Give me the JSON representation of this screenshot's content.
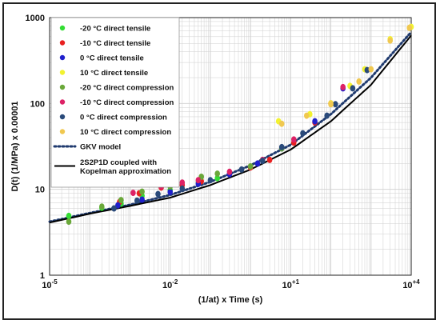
{
  "chart_data": {
    "type": "scatter",
    "xlabel": "(1/at) x Time (s)",
    "ylabel": "D(t) (1/MPa)    x    0.00001",
    "x_scale": "log",
    "y_scale": "log",
    "xlim": [
      1e-05,
      10000
    ],
    "ylim": [
      1,
      1000
    ],
    "x_ticks": [
      {
        "value": 1e-05,
        "base": "10",
        "exp": "-5"
      },
      {
        "value": 0.01,
        "base": "10",
        "exp": "-2"
      },
      {
        "value": 10,
        "base": "10",
        "exp": "+1"
      },
      {
        "value": 10000,
        "base": "10",
        "exp": "+4"
      }
    ],
    "y_ticks": [
      {
        "value": 1,
        "label": "1"
      },
      {
        "value": 10,
        "label": "10"
      },
      {
        "value": 100,
        "label": "100"
      },
      {
        "value": 1000,
        "label": "1000"
      }
    ],
    "grid": true,
    "legend_position": "top-left",
    "series": [
      {
        "name": "-20 °C direct tensile",
        "kind": "points",
        "color": "#33dd33",
        "points": [
          [
            3e-05,
            4.9
          ],
          [
            0.0002,
            6.1
          ],
          [
            0.0006,
            6.8
          ],
          [
            0.002,
            8.4
          ],
          [
            0.01,
            9.8
          ],
          [
            0.05,
            12.0
          ],
          [
            0.15,
            13.5
          ]
        ]
      },
      {
        "name": "-10 °C direct tensile",
        "kind": "points",
        "color": "#e82020",
        "points": [
          [
            0.00055,
            7.1
          ],
          [
            0.0017,
            9.0
          ],
          [
            0.006,
            10.5
          ],
          [
            0.02,
            11.2
          ],
          [
            0.06,
            12.4
          ],
          [
            1.0,
            18.0
          ],
          [
            3.0,
            22.0
          ],
          [
            12,
            35.0
          ],
          [
            40,
            60.0
          ],
          [
            100,
            100.0
          ]
        ]
      },
      {
        "name": "0 °C direct tensile",
        "kind": "points",
        "color": "#2020cc",
        "points": [
          [
            0.0005,
            6.5
          ],
          [
            0.002,
            7.6
          ],
          [
            0.01,
            9.3
          ],
          [
            0.05,
            11.6
          ],
          [
            0.3,
            15.0
          ],
          [
            1.5,
            20.0
          ],
          [
            6,
            30.0
          ],
          [
            40,
            62.0
          ],
          [
            200,
            150.0
          ]
        ]
      },
      {
        "name": "10 °C direct tensile",
        "kind": "points",
        "color": "#f2f230",
        "points": [
          [
            5,
            62.0
          ],
          [
            30,
            75.0
          ],
          [
            100,
            100.0
          ],
          [
            300,
            160.0
          ],
          [
            700,
            250.0
          ],
          [
            3000,
            560.0
          ],
          [
            10000,
            780.0
          ]
        ]
      },
      {
        "name": "-20 °C direct compression",
        "kind": "points",
        "color": "#6aa83a",
        "points": [
          [
            3e-05,
            4.2
          ],
          [
            0.0002,
            6.3
          ],
          [
            0.0006,
            7.5
          ],
          [
            0.002,
            9.4
          ],
          [
            0.01,
            10.8
          ],
          [
            0.06,
            14.0
          ],
          [
            0.15,
            15.2
          ],
          [
            1.0,
            18.5
          ],
          [
            6,
            30.0
          ]
        ]
      },
      {
        "name": "-10 °C direct compression",
        "kind": "points",
        "color": "#dd2266",
        "points": [
          [
            0.0012,
            9.1
          ],
          [
            0.006,
            10.8
          ],
          [
            0.02,
            12.0
          ],
          [
            0.05,
            12.8
          ],
          [
            0.3,
            16.0
          ],
          [
            2,
            22.0
          ],
          [
            12,
            38.0
          ],
          [
            200,
            155.0
          ]
        ]
      },
      {
        "name": "0 °C direct compression",
        "kind": "points",
        "color": "#2a4a7a",
        "points": [
          [
            0.0004,
            6.0
          ],
          [
            0.0015,
            7.4
          ],
          [
            0.005,
            8.8
          ],
          [
            0.02,
            10.2
          ],
          [
            0.1,
            12.8
          ],
          [
            0.6,
            17.0
          ],
          [
            2,
            21.5
          ],
          [
            6,
            31.0
          ],
          [
            20,
            45.0
          ],
          [
            80,
            72.0
          ],
          [
            130,
            98.0
          ],
          [
            350,
            150.0
          ],
          [
            800,
            245.0
          ]
        ]
      },
      {
        "name": "10 °C direct compression",
        "kind": "points",
        "color": "#f0c850",
        "points": [
          [
            6,
            58.0
          ],
          [
            25,
            72.0
          ],
          [
            100,
            98.0
          ],
          [
            500,
            180.0
          ],
          [
            1000,
            250.0
          ],
          [
            3000,
            540.0
          ],
          [
            9000,
            760.0
          ]
        ]
      },
      {
        "name": "GKV model",
        "kind": "line",
        "style": "dotted",
        "color": "#1f3a6e",
        "points": [
          [
            1e-05,
            4.2
          ],
          [
            0.0001,
            5.3
          ],
          [
            0.001,
            6.6
          ],
          [
            0.01,
            8.6
          ],
          [
            0.1,
            12.2
          ],
          [
            1,
            19.0
          ],
          [
            10,
            33.0
          ],
          [
            100,
            75.0
          ],
          [
            1000,
            200.0
          ],
          [
            10000,
            680.0
          ]
        ]
      },
      {
        "name": "2S2P1D coupled with Kopelman approximation",
        "kind": "line",
        "style": "solid",
        "color": "#000000",
        "points": [
          [
            1e-05,
            4.1
          ],
          [
            0.0001,
            5.2
          ],
          [
            0.001,
            6.4
          ],
          [
            0.01,
            8.0
          ],
          [
            0.1,
            11.2
          ],
          [
            1,
            17.0
          ],
          [
            10,
            29.0
          ],
          [
            100,
            62.0
          ],
          [
            1000,
            165.0
          ],
          [
            10000,
            620.0
          ]
        ]
      }
    ]
  }
}
